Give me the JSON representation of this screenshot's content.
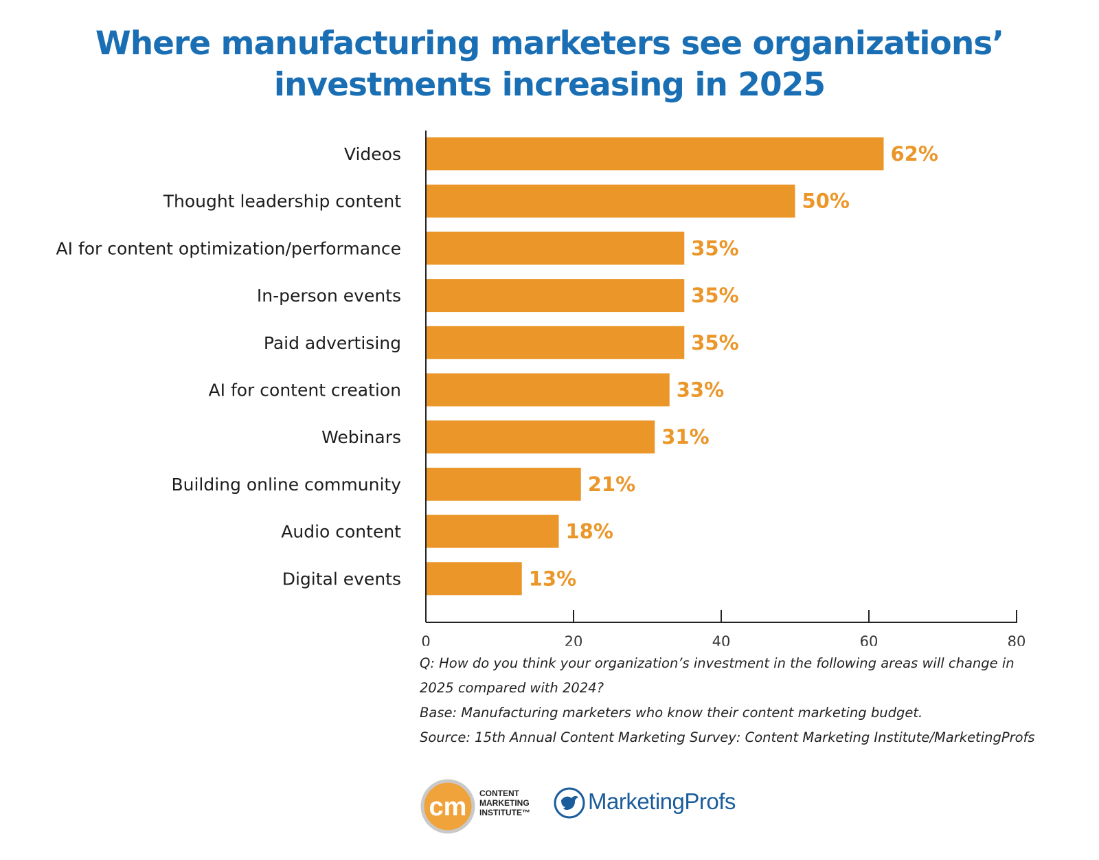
{
  "title": {
    "line1": "Where manufacturing marketers see organizations’",
    "line2": "investments increasing in 2025"
  },
  "colors": {
    "bar": "#eb9628",
    "value_label": "#eb9628",
    "title": "#1a6fb4",
    "axis": "#222222"
  },
  "chart_data": {
    "type": "bar",
    "orientation": "horizontal",
    "title": "Where manufacturing marketers see organizations’ investments increasing in 2025",
    "categories": [
      "Videos",
      "Thought leadership content",
      "AI for content optimization/performance",
      "In-person events",
      "Paid advertising",
      "AI for content creation",
      "Webinars",
      "Building online community",
      "Audio content",
      "Digital events"
    ],
    "values": [
      62,
      50,
      35,
      35,
      35,
      33,
      31,
      21,
      18,
      13
    ],
    "value_labels": [
      "62%",
      "50%",
      "35%",
      "35%",
      "35%",
      "33%",
      "31%",
      "21%",
      "18%",
      "13%"
    ],
    "xlim": [
      0,
      80
    ],
    "xticks": [
      0,
      20,
      40,
      60,
      80
    ],
    "xlabel": "",
    "ylabel": "",
    "grid": false,
    "legend": "none"
  },
  "notes": {
    "question_line1": "Q: How do you think your organization’s investment in the following areas will change in",
    "question_line2": "2025 compared with 2024?",
    "base": "Base: Manufacturing marketers who know their content marketing budget.",
    "source": "Source: 15th Annual Content Marketing Survey: Content Marketing Institute/MarketingProfs"
  },
  "logos": {
    "cmi_mark": "cm",
    "cmi_line1": "CONTENT",
    "cmi_line2": "MARKETING",
    "cmi_line3": "INSTITUTE™",
    "marketingprofs": "MarketingProfs"
  }
}
